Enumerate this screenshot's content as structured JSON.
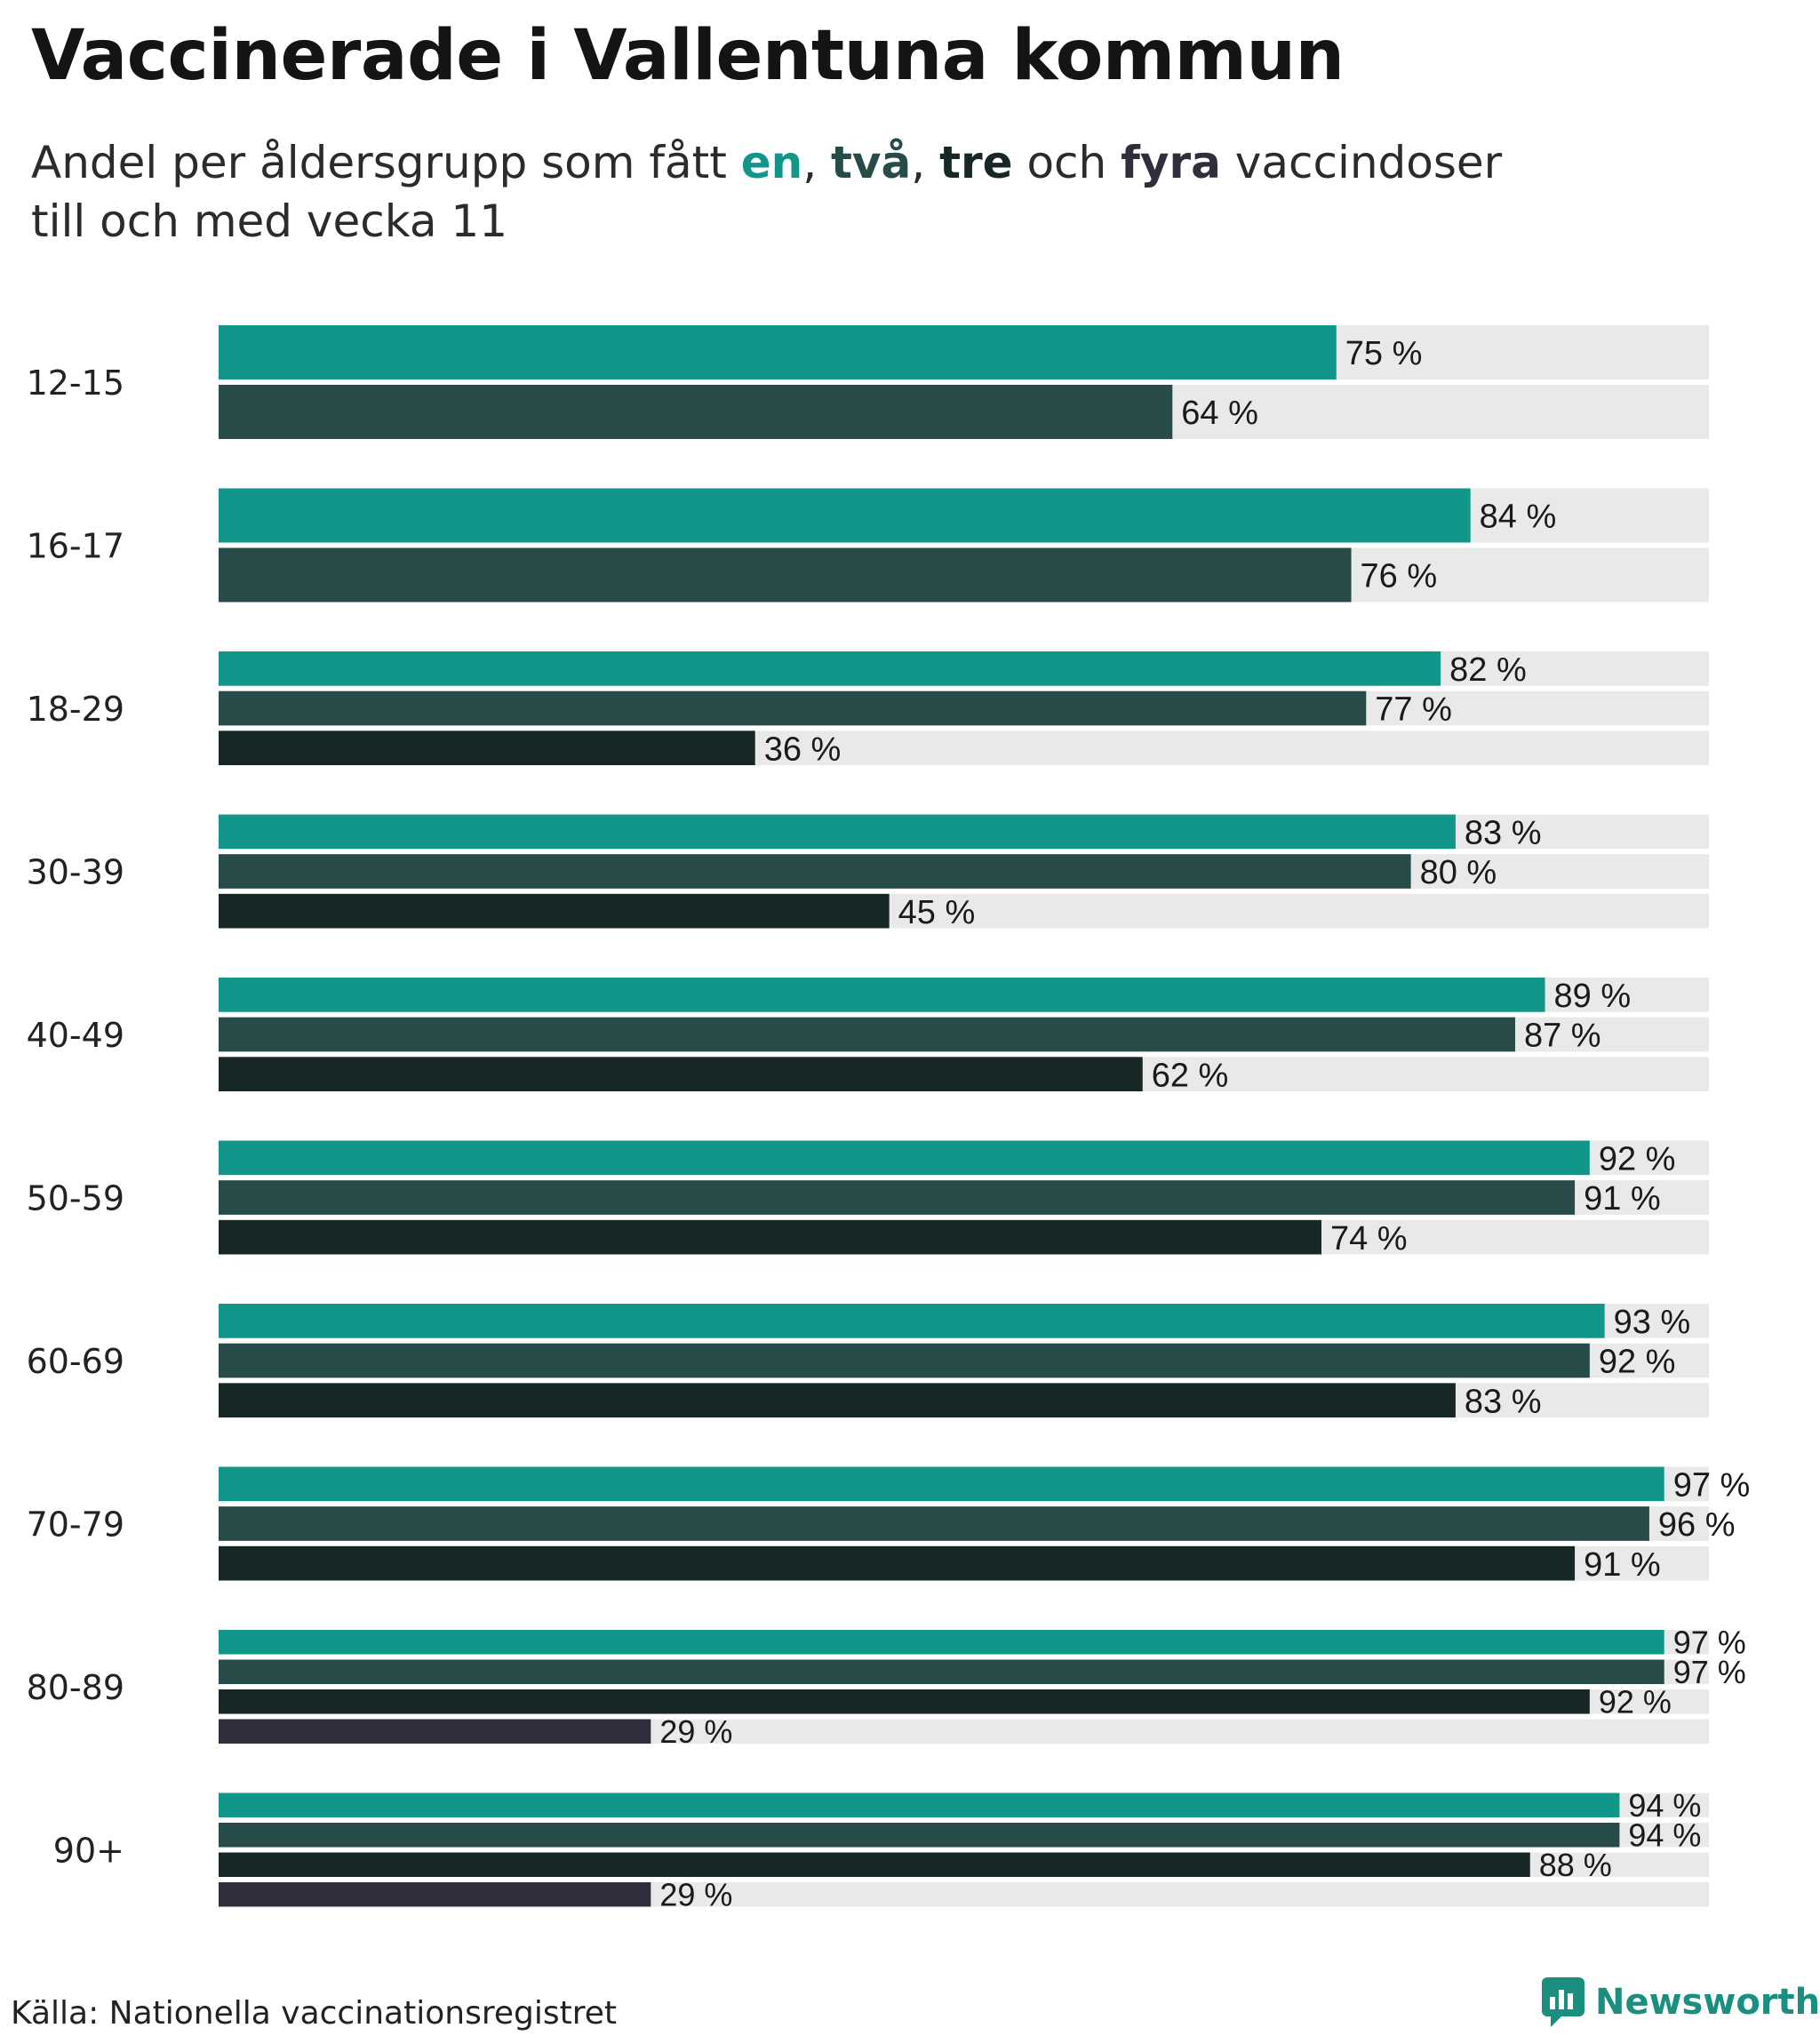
{
  "title": "Vaccinerade i Vallentuna kommun",
  "subtitle": {
    "pre": "Andel per åldersgrupp som fått ",
    "d1": "en",
    "sep1": ", ",
    "d2": "två",
    "sep2": ", ",
    "d3": "tre",
    "mid": " och ",
    "d4": "fyra",
    "post": " vaccindoser",
    "line2": "till och med vecka 11"
  },
  "colors": {
    "dose1": "#13968a",
    "dose2": "#264b48",
    "dose3": "#172726",
    "dose4": "#2e2e3c",
    "track": "#e9e9e9"
  },
  "chart_data": {
    "type": "bar",
    "orientation": "horizontal",
    "title": "Vaccinerade i Vallentuna kommun",
    "xlim": [
      0,
      100
    ],
    "unit": "%",
    "categories": [
      "12-15",
      "16-17",
      "18-29",
      "30-39",
      "40-49",
      "50-59",
      "60-69",
      "70-79",
      "80-89",
      "90+"
    ],
    "series": [
      {
        "name": "en",
        "values": [
          75,
          84,
          82,
          83,
          89,
          92,
          93,
          97,
          97,
          94
        ]
      },
      {
        "name": "två",
        "values": [
          64,
          76,
          77,
          80,
          87,
          91,
          92,
          96,
          97,
          94
        ]
      },
      {
        "name": "tre",
        "values": [
          null,
          null,
          36,
          45,
          62,
          74,
          83,
          91,
          92,
          88
        ]
      },
      {
        "name": "fyra",
        "values": [
          null,
          null,
          null,
          null,
          null,
          null,
          null,
          null,
          29,
          29
        ]
      }
    ]
  },
  "footer": {
    "source": "Källa: Nationella vaccinationsregistret",
    "brand": "Newsworthy"
  }
}
